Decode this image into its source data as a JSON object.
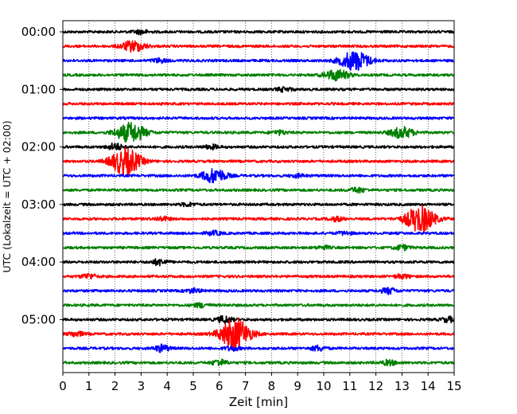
{
  "chart_data": {
    "type": "line",
    "xlabel": "Zeit  [min]",
    "ylabel": "UTC (Lokalzeit = UTC + 02:00)",
    "xlim": [
      0,
      15
    ],
    "x_ticks": [
      "0",
      "1",
      "2",
      "3",
      "4",
      "5",
      "6",
      "7",
      "8",
      "9",
      "10",
      "11",
      "12",
      "13",
      "14",
      "15"
    ],
    "y_tick_labels": [
      "00:00",
      "01:00",
      "02:00",
      "03:00",
      "04:00",
      "05:00"
    ],
    "y_tick_rows": [
      0,
      4,
      8,
      12,
      16,
      20
    ],
    "vertical_grid": true,
    "grid_style": "dotted",
    "trace_colors": [
      "#000000",
      "#ff0000",
      "#0000ff",
      "#008000"
    ],
    "row_minutes": 15,
    "traces": [
      {
        "start": "00:00",
        "color": "#000000",
        "events": [
          {
            "t": 3.0,
            "amp": 0.2
          }
        ]
      },
      {
        "start": "00:15",
        "color": "#ff0000",
        "events": [
          {
            "t": 2.7,
            "amp": 0.55
          }
        ]
      },
      {
        "start": "00:30",
        "color": "#0000ff",
        "events": [
          {
            "t": 11.2,
            "amp": 1.0
          },
          {
            "t": 3.7,
            "amp": 0.2
          }
        ]
      },
      {
        "start": "00:45",
        "color": "#008000",
        "events": [
          {
            "t": 10.5,
            "amp": 0.55
          }
        ]
      },
      {
        "start": "01:00",
        "color": "#000000",
        "events": [
          {
            "t": 8.5,
            "amp": 0.2
          }
        ]
      },
      {
        "start": "01:15",
        "color": "#ff0000",
        "events": []
      },
      {
        "start": "01:30",
        "color": "#0000ff",
        "events": []
      },
      {
        "start": "01:45",
        "color": "#008000",
        "events": [
          {
            "t": 2.6,
            "amp": 1.0
          },
          {
            "t": 13.0,
            "amp": 0.55
          },
          {
            "t": 8.3,
            "amp": 0.2
          }
        ]
      },
      {
        "start": "02:00",
        "color": "#000000",
        "events": [
          {
            "t": 2.0,
            "amp": 0.35
          },
          {
            "t": 5.7,
            "amp": 0.2
          }
        ]
      },
      {
        "start": "02:15",
        "color": "#ff0000",
        "events": [
          {
            "t": 2.4,
            "amp": 1.4
          }
        ]
      },
      {
        "start": "02:30",
        "color": "#0000ff",
        "events": [
          {
            "t": 5.8,
            "amp": 0.75
          },
          {
            "t": 9.0,
            "amp": 0.15
          }
        ]
      },
      {
        "start": "02:45",
        "color": "#008000",
        "events": [
          {
            "t": 11.3,
            "amp": 0.25
          }
        ]
      },
      {
        "start": "03:00",
        "color": "#000000",
        "events": [
          {
            "t": 4.8,
            "amp": 0.15
          }
        ]
      },
      {
        "start": "03:15",
        "color": "#ff0000",
        "events": [
          {
            "t": 13.7,
            "amp": 1.35
          },
          {
            "t": 3.8,
            "amp": 0.2
          },
          {
            "t": 10.5,
            "amp": 0.2
          }
        ]
      },
      {
        "start": "03:30",
        "color": "#0000ff",
        "events": [
          {
            "t": 5.8,
            "amp": 0.2
          },
          {
            "t": 10.8,
            "amp": 0.15
          }
        ]
      },
      {
        "start": "03:45",
        "color": "#008000",
        "events": [
          {
            "t": 13.0,
            "amp": 0.25
          },
          {
            "t": 10.0,
            "amp": 0.15
          }
        ]
      },
      {
        "start": "04:00",
        "color": "#000000",
        "events": [
          {
            "t": 3.7,
            "amp": 0.3
          }
        ]
      },
      {
        "start": "04:15",
        "color": "#ff0000",
        "events": [
          {
            "t": 1.0,
            "amp": 0.25
          },
          {
            "t": 13.0,
            "amp": 0.2
          }
        ]
      },
      {
        "start": "04:30",
        "color": "#0000ff",
        "events": [
          {
            "t": 12.5,
            "amp": 0.3
          },
          {
            "t": 5.0,
            "amp": 0.2
          }
        ]
      },
      {
        "start": "04:45",
        "color": "#008000",
        "events": [
          {
            "t": 5.3,
            "amp": 0.2
          }
        ]
      },
      {
        "start": "05:00",
        "color": "#000000",
        "events": [
          {
            "t": 6.2,
            "amp": 0.35
          },
          {
            "t": 14.8,
            "amp": 0.25
          }
        ]
      },
      {
        "start": "05:15",
        "color": "#ff0000",
        "events": [
          {
            "t": 6.6,
            "amp": 1.7
          },
          {
            "t": 0.5,
            "amp": 0.25
          }
        ]
      },
      {
        "start": "05:30",
        "color": "#0000ff",
        "events": [
          {
            "t": 3.8,
            "amp": 0.35
          },
          {
            "t": 9.8,
            "amp": 0.25
          },
          {
            "t": 6.5,
            "amp": 0.2
          }
        ]
      },
      {
        "start": "05:45",
        "color": "#008000",
        "events": [
          {
            "t": 6.0,
            "amp": 0.3
          },
          {
            "t": 12.5,
            "amp": 0.25
          }
        ]
      }
    ]
  }
}
